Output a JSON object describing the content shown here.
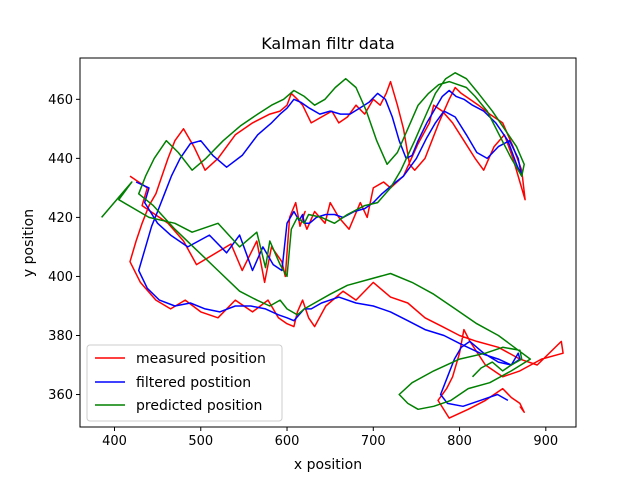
{
  "chart_data": {
    "type": "line",
    "title": "Kalman filtr data",
    "xlabel": "x position",
    "ylabel": "y position",
    "xlim": [
      360,
      935
    ],
    "ylim": [
      349,
      474
    ],
    "xticks": [
      400,
      500,
      600,
      700,
      800,
      900
    ],
    "yticks": [
      360,
      380,
      400,
      420,
      440,
      460
    ],
    "grid": false,
    "legend_position": "lower-left",
    "series": [
      {
        "name": "measured position",
        "color": "#ff0000",
        "x": [
          418,
          438,
          432,
          462,
          480,
          495,
          535,
          548,
          565,
          574,
          582,
          594,
          598,
          603,
          610,
          615,
          621,
          618,
          623,
          632,
          644,
          650,
          660,
          672,
          685,
          693,
          700,
          712,
          720,
          735,
          752,
          765,
          770,
          780,
          792,
          805,
          818,
          828,
          840,
          852,
          862,
          870,
          876,
          872,
          862,
          850,
          835,
          822,
          812,
          802,
          795,
          788,
          782,
          776,
          768,
          760,
          748,
          742,
          735,
          728,
          720,
          715,
          708,
          700,
          690,
          680,
          670,
          660,
          652,
          640,
          628,
          618,
          612,
          605,
          600,
          592,
          580,
          560,
          540,
          520,
          505,
          492,
          480,
          470,
          462,
          455,
          448,
          440,
          432,
          425,
          418,
          430,
          448,
          465,
          482,
          500,
          520,
          540,
          560,
          578,
          590,
          600,
          608,
          612,
          618,
          625,
          632,
          645,
          665,
          680,
          700,
          720,
          740,
          760,
          780,
          800,
          820,
          845,
          870,
          890,
          918,
          920,
          895,
          870,
          850,
          830,
          812,
          805,
          800,
          792,
          785,
          775,
          788,
          810,
          830,
          850,
          860,
          870,
          875,
          870
        ],
        "y": [
          434,
          430,
          424,
          418,
          412,
          404,
          411,
          402,
          412,
          398,
          410,
          405,
          400,
          420,
          425,
          417,
          422,
          420,
          416,
          422,
          418,
          425,
          420,
          416,
          425,
          420,
          430,
          432,
          430,
          434,
          445,
          452,
          458,
          456,
          452,
          446,
          440,
          436,
          444,
          448,
          440,
          432,
          426,
          436,
          444,
          452,
          455,
          458,
          460,
          462,
          464,
          460,
          456,
          452,
          446,
          440,
          436,
          438,
          450,
          458,
          466,
          462,
          458,
          460,
          455,
          458,
          454,
          452,
          456,
          454,
          452,
          458,
          460,
          462,
          458,
          456,
          455,
          452,
          448,
          440,
          436,
          444,
          450,
          446,
          440,
          434,
          428,
          424,
          418,
          412,
          405,
          398,
          392,
          389,
          392,
          388,
          386,
          392,
          388,
          392,
          386,
          384,
          383,
          388,
          392,
          386,
          383,
          390,
          395,
          392,
          398,
          393,
          391,
          386,
          383,
          380,
          378,
          376,
          372,
          370,
          378,
          374,
          372,
          368,
          366,
          370,
          378,
          382,
          374,
          366,
          362,
          358,
          352,
          355,
          358,
          362,
          359,
          357,
          354,
          356
        ]
      },
      {
        "name": "filtered postition",
        "color": "#0000ff",
        "x": [
          425,
          440,
          435,
          450,
          465,
          485,
          510,
          530,
          545,
          560,
          572,
          584,
          594,
          600,
          608,
          614,
          618,
          620,
          626,
          634,
          645,
          655,
          665,
          678,
          690,
          700,
          710,
          722,
          735,
          750,
          762,
          772,
          782,
          795,
          808,
          820,
          832,
          845,
          858,
          868,
          872,
          866,
          856,
          842,
          828,
          815,
          805,
          796,
          788,
          780,
          772,
          762,
          752,
          745,
          738,
          730,
          722,
          714,
          705,
          695,
          684,
          673,
          662,
          650,
          638,
          626,
          616,
          608,
          600,
          592,
          582,
          566,
          548,
          530,
          514,
          500,
          488,
          476,
          466,
          458,
          450,
          443,
          436,
          428,
          438,
          452,
          470,
          488,
          505,
          522,
          540,
          558,
          575,
          590,
          600,
          608,
          614,
          620,
          628,
          640,
          660,
          680,
          700,
          720,
          740,
          760,
          782,
          802,
          824,
          845,
          860,
          868,
          870,
          860,
          845,
          828,
          812,
          802,
          794,
          786,
          778,
          786,
          804,
          824,
          844,
          856
        ],
        "y": [
          432,
          430,
          425,
          418,
          414,
          410,
          414,
          408,
          414,
          402,
          410,
          404,
          402,
          418,
          422,
          419,
          421,
          418,
          418,
          420,
          421,
          421,
          420,
          422,
          423,
          425,
          428,
          431,
          434,
          440,
          447,
          452,
          456,
          454,
          448,
          442,
          440,
          444,
          446,
          440,
          434,
          438,
          446,
          452,
          456,
          458,
          460,
          461,
          463,
          461,
          457,
          452,
          446,
          441,
          440,
          446,
          454,
          460,
          462,
          459,
          457,
          455,
          455,
          456,
          455,
          457,
          459,
          460,
          457,
          455,
          452,
          448,
          441,
          437,
          441,
          446,
          445,
          440,
          434,
          428,
          422,
          417,
          410,
          402,
          396,
          392,
          390,
          391,
          389,
          388,
          390,
          390,
          389,
          387,
          386,
          385,
          387,
          389,
          389,
          391,
          393,
          391,
          390,
          388,
          385,
          382,
          380,
          377,
          374,
          372,
          370,
          374,
          372,
          370,
          371,
          374,
          378,
          376,
          372,
          366,
          360,
          357,
          356,
          358,
          360,
          358
        ]
      },
      {
        "name": "predicted position",
        "color": "#008000",
        "x": [
          385,
          420,
          405,
          440,
          470,
          490,
          520,
          545,
          565,
          575,
          580,
          592,
          600,
          605,
          612,
          620,
          625,
          640,
          655,
          670,
          690,
          705,
          720,
          732,
          748,
          760,
          772,
          784,
          795,
          808,
          822,
          838,
          852,
          866,
          875,
          872,
          860,
          846,
          832,
          818,
          808,
          798,
          788,
          776,
          764,
          752,
          740,
          728,
          716,
          704,
          692,
          680,
          668,
          656,
          644,
          632,
          620,
          608,
          596,
          582,
          566,
          546,
          526,
          506,
          490,
          474,
          460,
          446,
          436,
          428,
          445,
          470,
          495,
          520,
          545,
          565,
          580,
          592,
          600,
          606,
          612,
          620,
          632,
          650,
          670,
          695,
          720,
          745,
          770,
          795,
          820,
          845,
          868,
          882,
          860,
          835,
          810,
          790,
          770,
          752,
          740,
          730,
          745,
          770,
          800,
          830,
          850,
          870,
          872,
          860,
          850,
          838,
          825,
          815
        ],
        "y": [
          420,
          432,
          426,
          420,
          418,
          415,
          418,
          410,
          415,
          403,
          412,
          404,
          400,
          416,
          420,
          418,
          421,
          420,
          418,
          421,
          424,
          425,
          430,
          436,
          446,
          454,
          462,
          467,
          469,
          467,
          462,
          456,
          450,
          444,
          438,
          434,
          440,
          448,
          456,
          461,
          464,
          465,
          466,
          465,
          462,
          458,
          450,
          442,
          438,
          446,
          456,
          464,
          467,
          464,
          460,
          458,
          461,
          463,
          460,
          458,
          455,
          451,
          446,
          440,
          436,
          442,
          446,
          440,
          434,
          428,
          424,
          416,
          409,
          402,
          395,
          392,
          390,
          392,
          389,
          388,
          387,
          389,
          391,
          394,
          397,
          399,
          401,
          398,
          394,
          389,
          384,
          380,
          375,
          372,
          368,
          364,
          362,
          358,
          356,
          355,
          357,
          360,
          364,
          368,
          372,
          374,
          376,
          375,
          372,
          370,
          368,
          371,
          369,
          366
        ]
      }
    ]
  }
}
